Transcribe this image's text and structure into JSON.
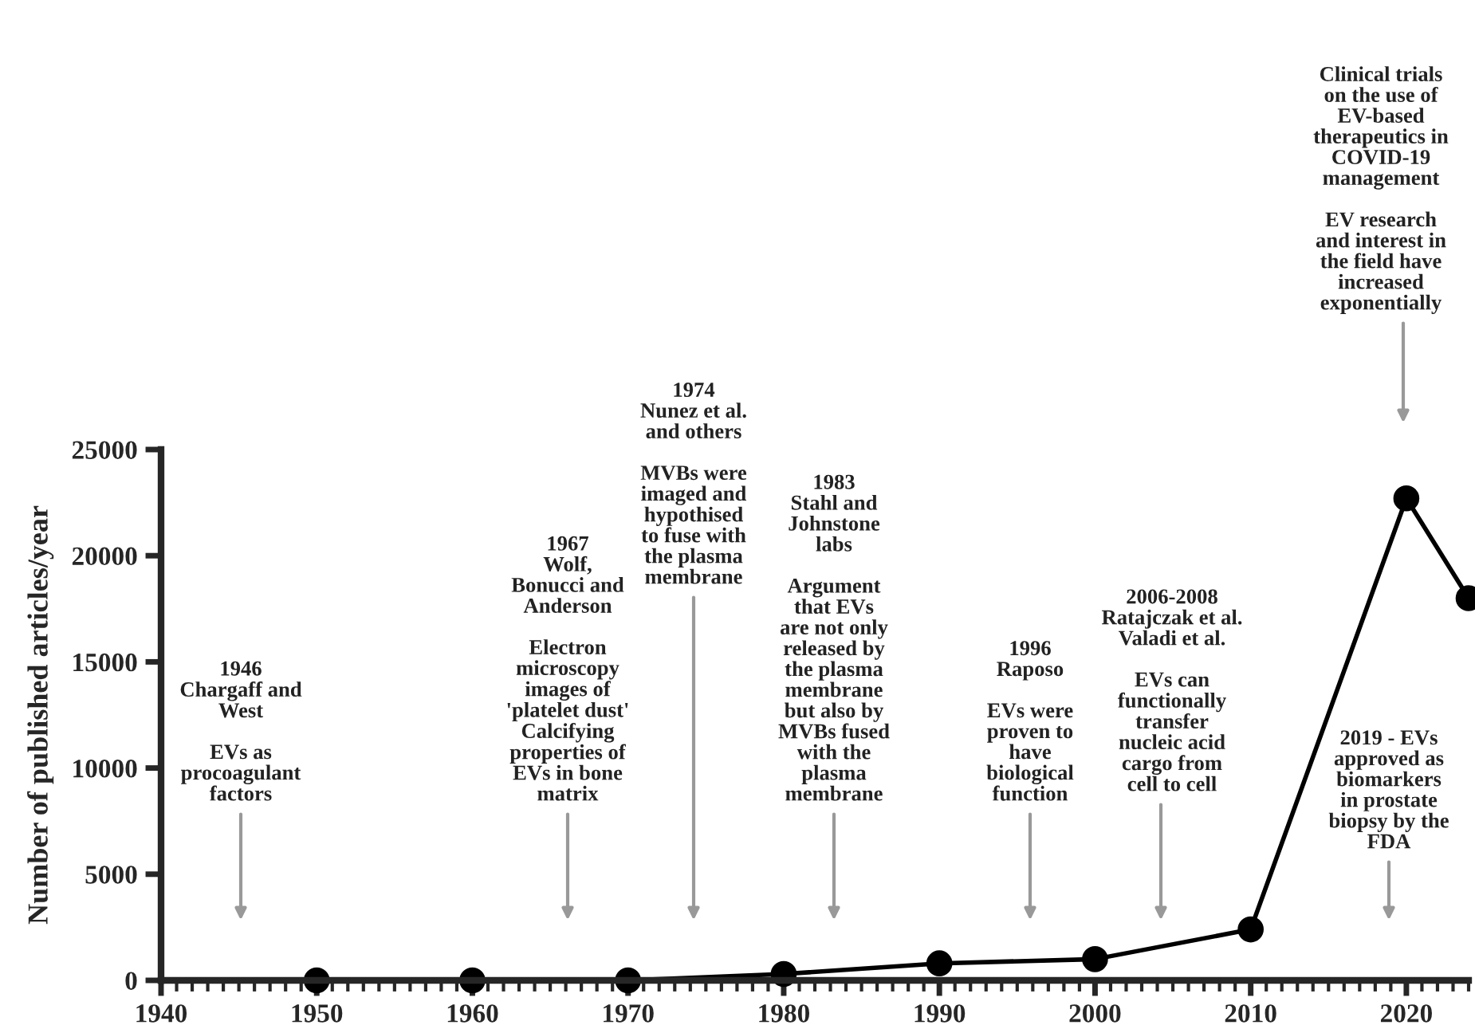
{
  "chart_data": {
    "type": "line",
    "ylabel": "Number of published articles/year",
    "x": [
      1950,
      1960,
      1970,
      1980,
      1990,
      2000,
      2010,
      2020,
      2024
    ],
    "series": [
      {
        "color": "#000000",
        "values": [
          0,
          0,
          0,
          300,
          800,
          1000,
          2400,
          22700,
          18000
        ]
      }
    ],
    "xlim": [
      1940,
      2024
    ],
    "xticks": [
      1940,
      1950,
      1960,
      1970,
      1980,
      1990,
      2000,
      2010,
      2020
    ],
    "ylim": [
      0,
      25000
    ],
    "yticks": [
      0,
      5000,
      10000,
      15000,
      20000,
      25000
    ],
    "marker": "circle",
    "line_style": "solid",
    "grid": false,
    "annotations": [
      "1946\nChargaff and\nWest\n\nEVs as\nprocoagulant\nfactors",
      "1967\nWolf,\nBonucci and\nAnderson\n\nElectron\nmicroscopy\nimages of\n'platelet dust'\nCalcifying\nproperties of\nEVs in bone\nmatrix",
      "1974\nNunez et al.\nand others\n\nMVBs were\nimaged and\nhypothised\nto fuse with\nthe plasma\nmembrane",
      "1983\nStahl and\nJohnstone\nlabs\n\nArgument\nthat EVs\nare not only\nreleased by\nthe plasma\nmembrane\nbut also by\nMVBs fused\nwith the\nplasma\nmembrane",
      "1996\nRaposo\n\nEVs were\nproven to\nhave\nbiological\nfunction",
      "2006-2008\nRatajczak et al.\nValadi et al.\n\nEVs can\nfunctionally\ntransfer\nnucleic acid\ncargo from\ncell to cell",
      "2019 - EVs\napproved as\nbiomarkers\nin prostate\nbiopsy by the\nFDA",
      "Clinical trials\non the use of\nEV-based\ntherapeutics in\nCOVID-19\nmanagement\n\nEV research\nand interest in\nthe field have\nincreased\nexponentially"
    ]
  }
}
